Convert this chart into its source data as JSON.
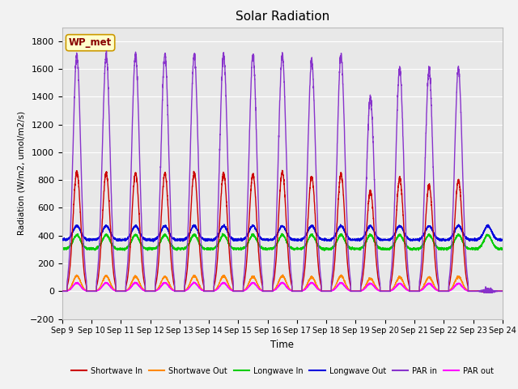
{
  "title": "Solar Radiation",
  "ylabel": "Radiation (W/m2, umol/m2/s)",
  "xlabel": "Time",
  "ylim": [
    -200,
    1900
  ],
  "yticks": [
    -200,
    0,
    200,
    400,
    600,
    800,
    1000,
    1200,
    1400,
    1600,
    1800
  ],
  "x_labels": [
    "Sep 9",
    "Sep 10",
    "Sep 11",
    "Sep 12",
    "Sep 13",
    "Sep 14",
    "Sep 15",
    "Sep 16",
    "Sep 17",
    "Sep 18",
    "Sep 19",
    "Sep 20",
    "Sep 21",
    "Sep 22",
    "Sep 23",
    "Sep 24"
  ],
  "num_days": 15,
  "label_box_text": "WP_met",
  "legend_entries": [
    {
      "label": "Shortwave In",
      "color": "#cc0000"
    },
    {
      "label": "Shortwave Out",
      "color": "#ff8800"
    },
    {
      "label": "Longwave In",
      "color": "#00cc00"
    },
    {
      "label": "Longwave Out",
      "color": "#0000dd"
    },
    {
      "label": "PAR in",
      "color": "#8833cc"
    },
    {
      "label": "PAR out",
      "color": "#ff00ff"
    }
  ],
  "plot_bg_color": "#e8e8e8",
  "fig_bg_color": "#f2f2f2",
  "grid_color": "#ffffff",
  "shortwave_in_peaks": [
    860,
    850,
    850,
    845,
    850,
    850,
    840,
    860,
    825,
    840,
    720,
    810,
    760,
    800,
    0
  ],
  "shortwave_out_peaks": [
    110,
    110,
    105,
    105,
    110,
    110,
    105,
    110,
    100,
    110,
    90,
    100,
    100,
    105,
    0
  ],
  "longwave_in_base": 305,
  "longwave_in_peak_add": 100,
  "longwave_out_base": 370,
  "longwave_out_peak_add": 100,
  "par_in_peaks": [
    1700,
    1700,
    1700,
    1700,
    1700,
    1700,
    1700,
    1700,
    1660,
    1700,
    1390,
    1600,
    1590,
    1600,
    0
  ],
  "par_out_peaks": [
    60,
    60,
    60,
    60,
    60,
    60,
    60,
    60,
    60,
    60,
    55,
    55,
    55,
    55,
    0
  ]
}
